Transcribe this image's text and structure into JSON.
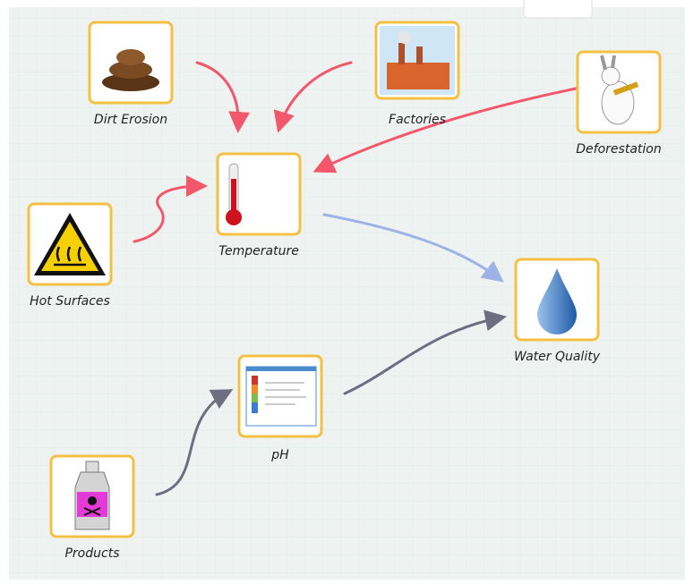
{
  "nodes": [
    {
      "label": "Dirt Erosion"
    },
    {
      "label": "Factories"
    },
    {
      "label": "Deforestation"
    },
    {
      "label": "Temperature"
    },
    {
      "label": "Hot Surfaces"
    },
    {
      "label": "Water Quality"
    },
    {
      "label": "pH"
    },
    {
      "label": "Products"
    }
  ]
}
